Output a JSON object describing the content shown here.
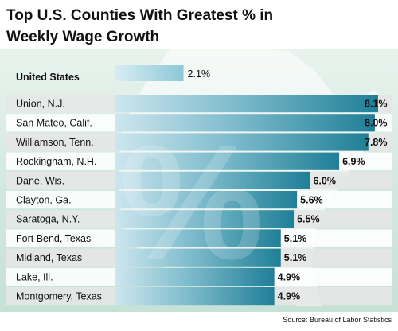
{
  "chart_data": {
    "type": "bar",
    "title": "Top U.S. Counties With Greatest % in Weekly Wage Growth",
    "title_lines": [
      "Top U.S. Counties With Greatest % in",
      "Weekly Wage Growth"
    ],
    "source": "Source: Bureau of Labor Statistics",
    "overlay_symbol": "%",
    "xlim": [
      0,
      8.1
    ],
    "reference": {
      "label": "United States",
      "value": 2.1,
      "value_label": "2.1%"
    },
    "categories": [
      "Union, N.J.",
      "San Mateo, Calif.",
      "Williamson, Tenn.",
      "Rockingham, N.H.",
      "Dane, Wis.",
      "Clayton, Ga.",
      "Saratoga, N.Y.",
      "Fort Bend, Texas",
      "Midland, Texas",
      "Lake, Ill.",
      "Montgomery, Texas"
    ],
    "values": [
      8.1,
      8.0,
      7.8,
      6.9,
      6.0,
      5.6,
      5.5,
      5.1,
      5.1,
      4.9,
      4.9
    ],
    "value_labels": [
      "8.1%",
      "8.0%",
      "7.8%",
      "6.9%",
      "6.0%",
      "5.6%",
      "5.5%",
      "5.1%",
      "5.1%",
      "4.9%",
      "4.9%"
    ],
    "colors": {
      "bar_dark": "#2a8aa0",
      "bar_light": "#bfe0ea",
      "row_shade": "#e6e6e6",
      "background_green": "#d9ece3",
      "text": "#111111"
    }
  }
}
